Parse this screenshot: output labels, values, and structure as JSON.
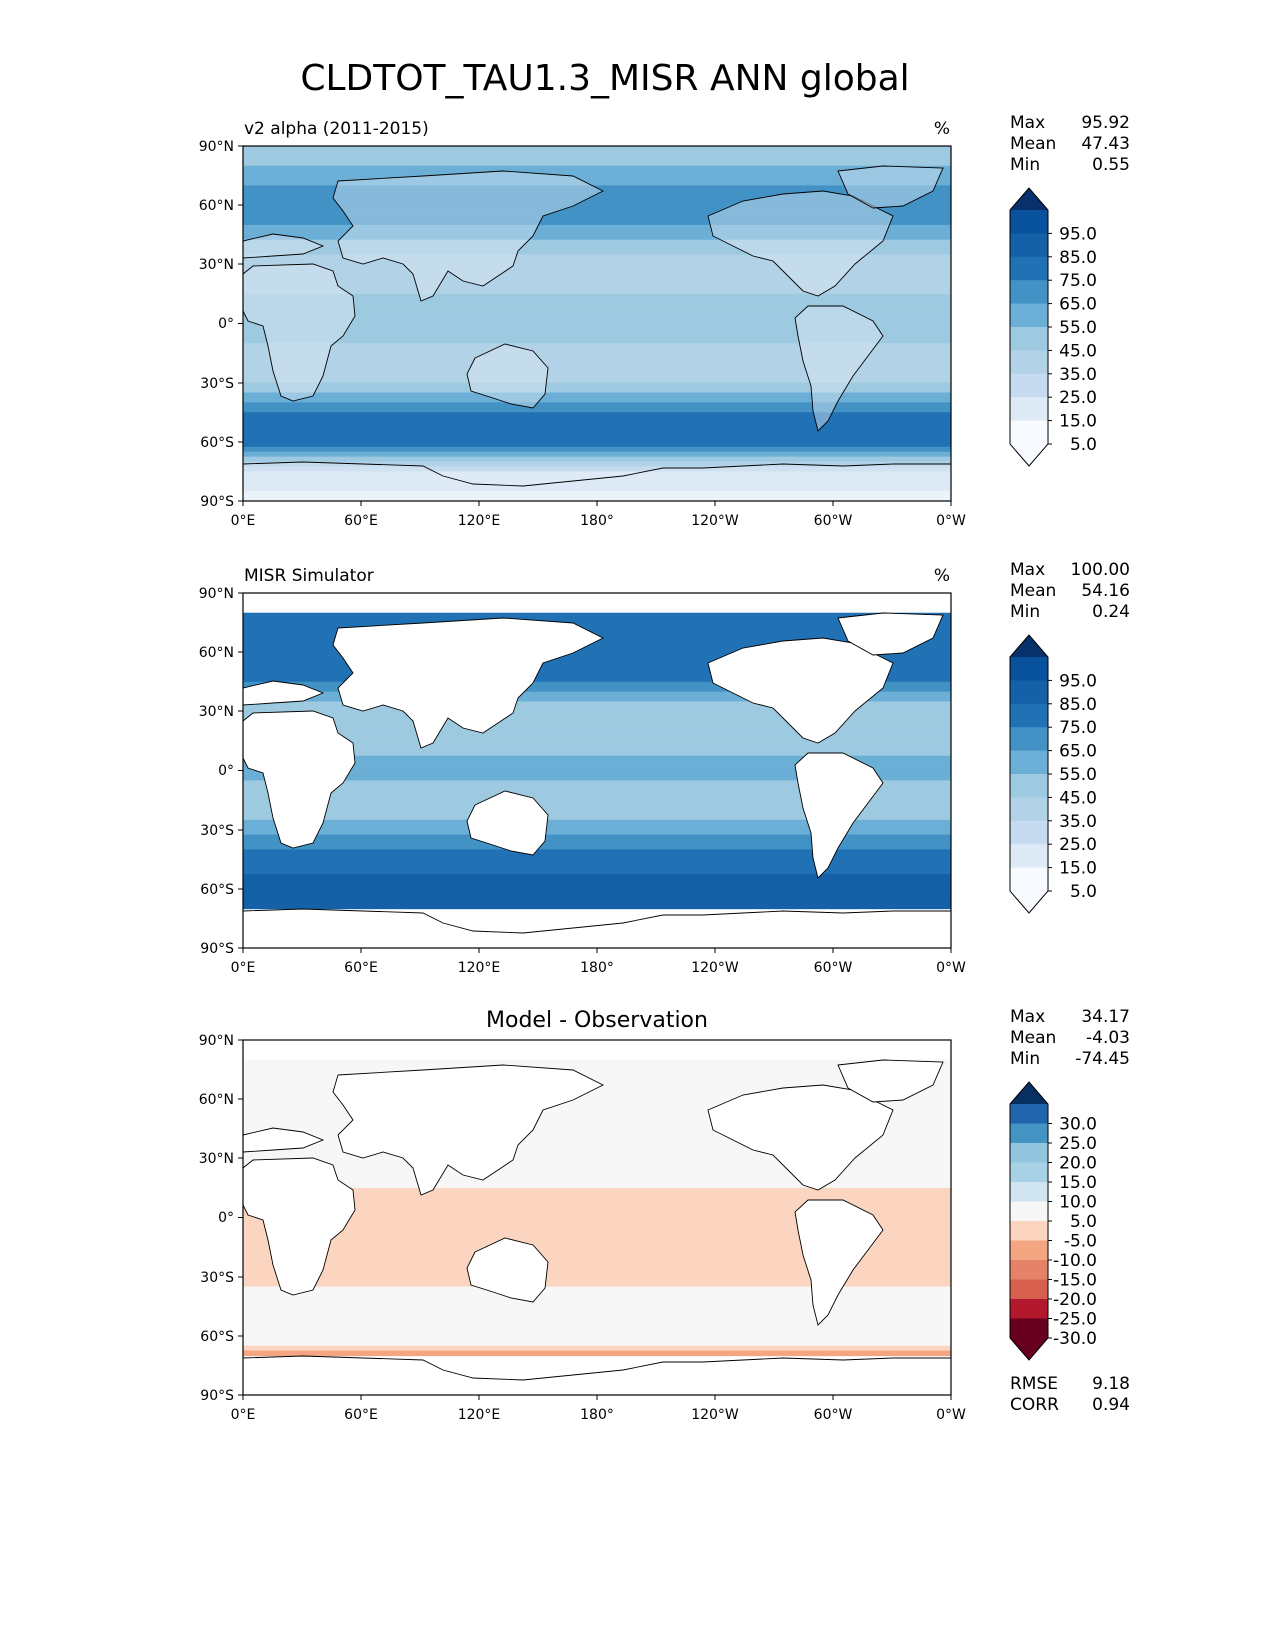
{
  "figure_title": "CLDTOT_TAU1.3_MISR ANN global",
  "xticks": [
    "0°E",
    "60°E",
    "120°E",
    "180°",
    "120°W",
    "60°W",
    "0°W"
  ],
  "yticks": [
    "90°N",
    "60°N",
    "30°N",
    "0°",
    "30°S",
    "60°S",
    "90°S"
  ],
  "stat_labels": {
    "max": "Max",
    "mean": "Mean",
    "min": "Min",
    "rmse": "RMSE",
    "corr": "CORR"
  },
  "colors": {
    "blues": [
      "#f7fbff",
      "#deebf7",
      "#c6dbef",
      "#b2d2e8",
      "#9ecae1",
      "#6baed6",
      "#4292c6",
      "#2171b5",
      "#1461a8",
      "#08519c",
      "#08306b"
    ],
    "diverging": [
      "#67001f",
      "#b2182b",
      "#d6604d",
      "#e58368",
      "#f4a582",
      "#fbd5c0",
      "#f7f7f7",
      "#d1e5f0",
      "#a8d1e6",
      "#92c5de",
      "#4393c3",
      "#2166ac",
      "#053061"
    ]
  },
  "chart_data": [
    {
      "type": "heatmap",
      "panel": "test",
      "title": "v2 alpha (2011-2015)",
      "units": "%",
      "xlim": [
        0,
        360
      ],
      "ylim": [
        -90,
        90
      ],
      "stats": {
        "max": "95.92",
        "mean": "47.43",
        "min": "0.55"
      },
      "colorbar": {
        "levels": [
          0,
          10,
          20,
          30,
          40,
          50,
          60,
          70,
          80,
          90,
          100
        ],
        "tick_labels": [
          "95.0",
          "85.0",
          "75.0",
          "65.0",
          "55.0",
          "45.0",
          "35.0",
          "25.0",
          "15.0",
          "5.0"
        ],
        "extend": "both"
      },
      "zonal_mean_profile": {
        "lat": [
          90,
          75,
          60,
          45,
          30,
          15,
          0,
          -15,
          -30,
          -45,
          -60,
          -75,
          -90
        ],
        "value": [
          40,
          55,
          70,
          55,
          30,
          40,
          50,
          35,
          40,
          70,
          80,
          20,
          5
        ]
      }
    },
    {
      "type": "heatmap",
      "panel": "reference",
      "title": "MISR Simulator",
      "units": "%",
      "xlim": [
        0,
        360
      ],
      "ylim": [
        -90,
        90
      ],
      "stats": {
        "max": "100.00",
        "mean": "54.16",
        "min": "0.24"
      },
      "colorbar": {
        "levels": [
          0,
          10,
          20,
          30,
          40,
          50,
          60,
          70,
          80,
          90,
          100
        ],
        "tick_labels": [
          "95.0",
          "85.0",
          "75.0",
          "65.0",
          "55.0",
          "45.0",
          "35.0",
          "25.0",
          "15.0",
          "5.0"
        ],
        "extend": "both"
      },
      "zonal_mean_profile": {
        "lat": [
          80,
          60,
          45,
          30,
          15,
          0,
          -15,
          -30,
          -45,
          -60,
          -70
        ],
        "value": [
          70,
          75,
          70,
          40,
          45,
          55,
          40,
          55,
          75,
          85,
          80
        ]
      }
    },
    {
      "type": "heatmap",
      "panel": "difference",
      "title": "Model - Observation",
      "units": "",
      "xlim": [
        0,
        360
      ],
      "ylim": [
        -90,
        90
      ],
      "stats": {
        "max": "34.17",
        "mean": "-4.03",
        "min": "-74.45",
        "rmse": "9.18",
        "corr": "0.94"
      },
      "colorbar": {
        "levels": [
          -35,
          -30,
          -25,
          -20,
          -15,
          -10,
          -5,
          5,
          10,
          15,
          20,
          25,
          30,
          35
        ],
        "tick_labels": [
          "30.0",
          "25.0",
          "20.0",
          "15.0",
          "10.0",
          "5.0",
          "-5.0",
          "-10.0",
          "-15.0",
          "-20.0",
          "-25.0",
          "-30.0"
        ],
        "extend": "both"
      },
      "zonal_mean_profile": {
        "lat": [
          80,
          60,
          30,
          15,
          0,
          -15,
          -30,
          -45,
          -60,
          -70
        ],
        "value": [
          5,
          0,
          -3,
          -5,
          -10,
          -10,
          -8,
          0,
          2,
          -15
        ]
      }
    }
  ]
}
